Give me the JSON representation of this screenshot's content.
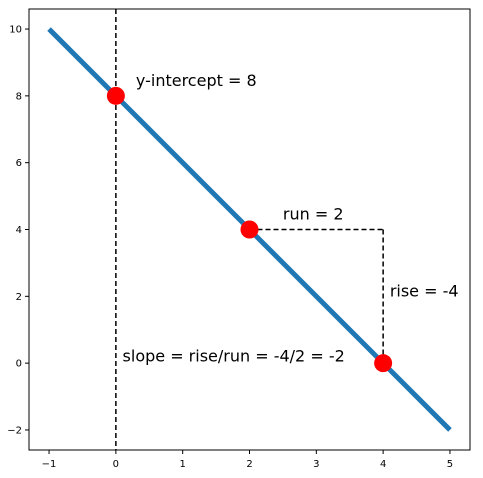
{
  "chart_data": {
    "type": "line",
    "title": "",
    "xlabel": "",
    "ylabel": "",
    "xlim": [
      -1.3,
      5.3
    ],
    "ylim": [
      -2.6,
      10.6
    ],
    "xticks": [
      -1,
      0,
      1,
      2,
      3,
      4,
      5
    ],
    "yticks": [
      -2,
      0,
      2,
      4,
      6,
      8,
      10
    ],
    "xtick_labels": [
      "−1",
      "0",
      "1",
      "2",
      "3",
      "4",
      "5"
    ],
    "ytick_labels": [
      "−2",
      "0",
      "2",
      "4",
      "6",
      "8",
      "10"
    ],
    "grid": false,
    "legend": "none",
    "series": [
      {
        "x": [
          -1,
          5
        ],
        "y": [
          10,
          -2
        ],
        "color": "#1f77b4"
      }
    ],
    "points": [
      {
        "x": 0,
        "y": 8
      },
      {
        "x": 2,
        "y": 4
      },
      {
        "x": 4,
        "y": 0
      }
    ],
    "point_color": "#ff0000",
    "vline_x": 0,
    "run_segment": {
      "x": [
        2,
        4
      ],
      "y": 4
    },
    "rise_segment": {
      "x": 4,
      "y": [
        4,
        0
      ]
    },
    "annotations": [
      {
        "text": "y-intercept = 8",
        "x": 0.3,
        "y": 8.3
      },
      {
        "text": "run = 2",
        "x": 2.5,
        "y": 4.3
      },
      {
        "text": "rise = -4",
        "x": 4.1,
        "y": 2.0
      },
      {
        "text": "slope = rise/run = -4/2 = -2",
        "x": 0.1,
        "y": 0.05
      }
    ]
  }
}
